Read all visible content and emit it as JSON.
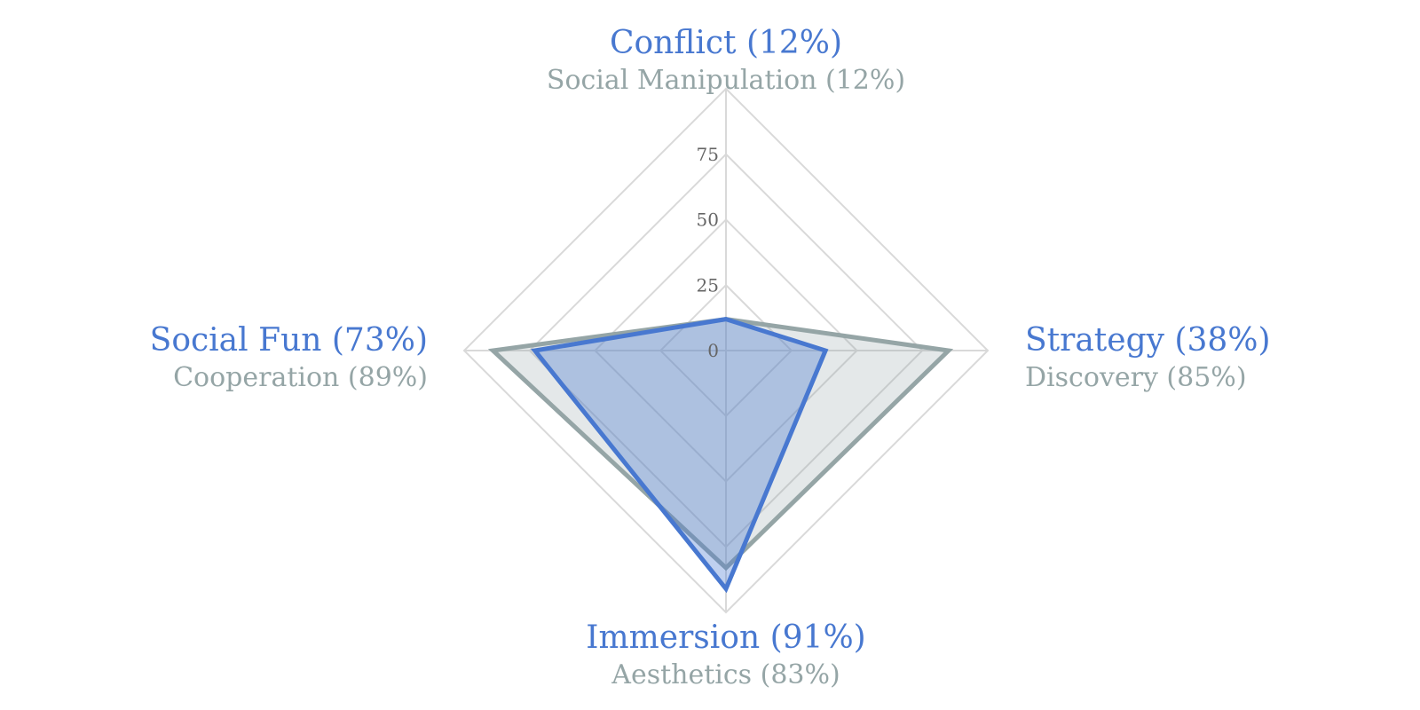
{
  "chart_data": {
    "type": "radar",
    "axes": [
      {
        "primary": "Conflict (12%)",
        "secondary": "Social Manipulation (12%)"
      },
      {
        "primary": "Strategy (38%)",
        "secondary": "Discovery (85%)"
      },
      {
        "primary": "Immersion (91%)",
        "secondary": "Aesthetics (83%)"
      },
      {
        "primary": "Social Fun (73%)",
        "secondary": "Cooperation (89%)"
      }
    ],
    "ticks": [
      0,
      25,
      50,
      75
    ],
    "rmax": 100,
    "series": [
      {
        "values": [
          12,
          85,
          83,
          89
        ],
        "color": "#95a5a6",
        "fill": "rgba(149,165,166,0.25)"
      },
      {
        "values": [
          12,
          38,
          91,
          73
        ],
        "color": "#4878d0",
        "fill": "rgba(72,120,208,0.35)"
      }
    ],
    "colors": {
      "grid": "#d9d9d9",
      "primary_label": "#4878d0",
      "secondary_label": "#95a5a6"
    }
  }
}
